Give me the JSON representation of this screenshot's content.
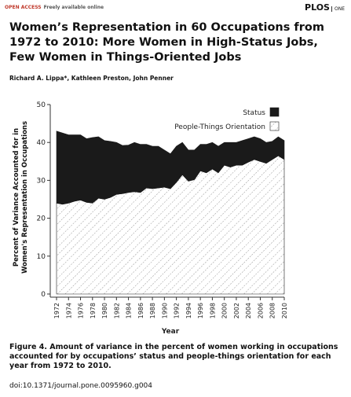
{
  "header": {
    "access": "OPEN ACCESS",
    "note": "Freely available online",
    "journal": "PLOS",
    "journal_sub": "ONE"
  },
  "title": "Women’s Representation in 60 Occupations from 1972 to 2010: More Women in High-Status Jobs, Few Women in Things-Oriented Jobs",
  "authors": "Richard A. Lippa*, Kathleen Preston, John Penner",
  "chart_data": {
    "type": "stacked_area",
    "x": [
      1972,
      1973,
      1974,
      1975,
      1976,
      1977,
      1978,
      1979,
      1980,
      1981,
      1982,
      1983,
      1984,
      1985,
      1986,
      1987,
      1988,
      1989,
      1990,
      1991,
      1992,
      1993,
      1994,
      1995,
      1996,
      1997,
      1998,
      1999,
      2000,
      2001,
      2002,
      2003,
      2004,
      2005,
      2006,
      2007,
      2008,
      2009,
      2010
    ],
    "series": [
      {
        "name": "People-Things Orientation",
        "color": "#222222",
        "hatch": true,
        "values": [
          24,
          23.7,
          24,
          24.5,
          24.8,
          24.2,
          24,
          25.3,
          25,
          25.5,
          26.3,
          26.5,
          26.8,
          27,
          26.8,
          28,
          27.8,
          28,
          28.2,
          27.8,
          29.5,
          31.5,
          29.8,
          30.2,
          32.5,
          32,
          33,
          32,
          34,
          33.5,
          34,
          34,
          34.8,
          35.5,
          35,
          34.5,
          35.5,
          36.5,
          35.5
        ]
      },
      {
        "name": "Status",
        "color": "#1a1a1a",
        "hatch": false,
        "values": [
          19,
          18.8,
          18,
          17.5,
          17.2,
          16.8,
          17.3,
          16.2,
          15.5,
          14.8,
          13.7,
          12.7,
          12.5,
          13,
          12.7,
          11.5,
          11.2,
          11,
          9.8,
          9.2,
          9.5,
          8.5,
          8.2,
          7.8,
          7,
          7.5,
          7,
          7,
          6,
          6.5,
          6,
          6.5,
          6.2,
          6,
          6,
          5.5,
          4.8,
          5,
          5
        ]
      }
    ],
    "x_label": "Year",
    "y_label": "Percent of Variance Accounted for in Women's Representation in Occupations",
    "xlim": [
      1972,
      2010
    ],
    "xticks": [
      1972,
      1974,
      1976,
      1978,
      1980,
      1982,
      1984,
      1986,
      1988,
      1990,
      1992,
      1994,
      1996,
      1998,
      2000,
      2002,
      2004,
      2006,
      2008,
      2010
    ],
    "ylim": [
      0,
      50
    ],
    "yticks": [
      0,
      10,
      20,
      30,
      40,
      50
    ],
    "legend": "top-right"
  },
  "caption": {
    "label": "Figure 4.",
    "text": "Amount of variance in the percent of women working in occupations accounted for by occupations’ status and people-things orientation for each year from 1972 to 2010.",
    "doi": "doi:10.1371/journal.pone.0095960.g004"
  }
}
